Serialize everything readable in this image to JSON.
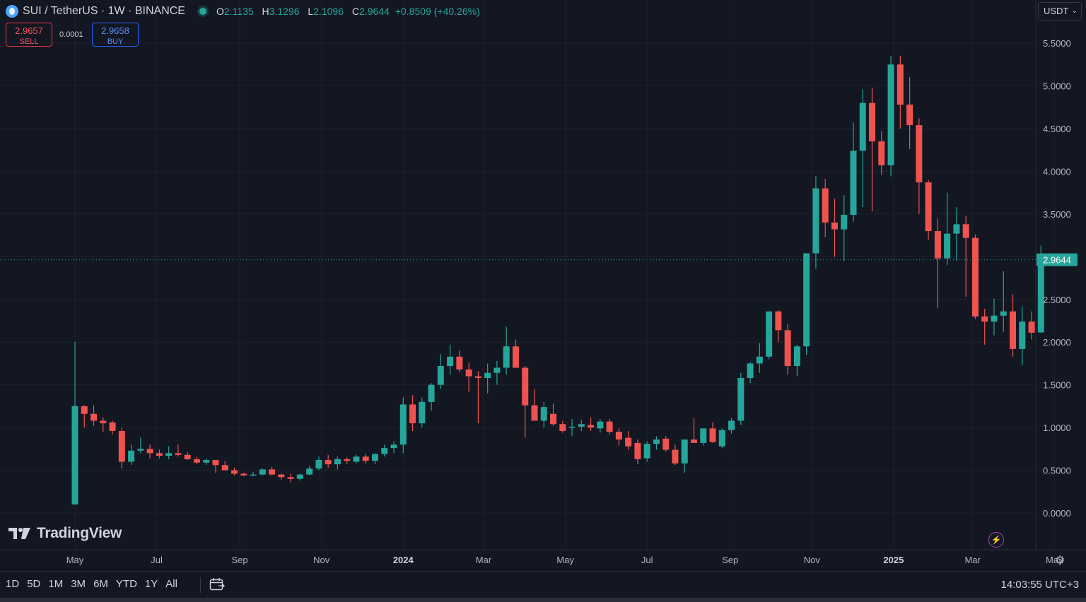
{
  "header": {
    "symbol": "SUI / TetherUS · 1W · BINANCE",
    "ohlc": [
      {
        "key": "O",
        "value": "2.1135"
      },
      {
        "key": "H",
        "value": "3.1296"
      },
      {
        "key": "L",
        "value": "2.1096"
      },
      {
        "key": "C",
        "value": "2.9644"
      }
    ],
    "change": "+0.8509 (+40.26%)"
  },
  "trade": {
    "sell_price": "2.9657",
    "sell_label": "SELL",
    "spread": "0.0001",
    "buy_price": "2.9658",
    "buy_label": "BUY"
  },
  "currency_selector": "USDT",
  "watermark": "TradingView",
  "ranges": [
    "1D",
    "5D",
    "1M",
    "3M",
    "6M",
    "YTD",
    "1Y",
    "All"
  ],
  "clock": "14:03:55 UTC+3",
  "colors": {
    "background": "#131722",
    "up": "#26a69a",
    "down": "#ef5350",
    "grid": "#1e222d",
    "last_price": "#26a69a"
  },
  "chart_data": {
    "type": "candlestick",
    "title": "SUI / TetherUS · 1W · BINANCE",
    "y_ticks": [
      "5.5000",
      "5.0000",
      "4.5000",
      "4.0000",
      "3.5000",
      "3.0000",
      "2.5000",
      "2.0000",
      "1.5000",
      "1.0000",
      "0.5000",
      "0.0000"
    ],
    "y_tick_values": [
      5.5,
      5,
      4.5,
      4,
      3.5,
      3,
      2.5,
      2,
      1.5,
      1,
      0.5,
      0
    ],
    "ylim": [
      -0.2,
      5.97
    ],
    "x_ticks": [
      {
        "label": "May",
        "date": "2023-05-01",
        "bold": false
      },
      {
        "label": "Jul",
        "date": "2023-07-01",
        "bold": false
      },
      {
        "label": "Sep",
        "date": "2023-09-01",
        "bold": false
      },
      {
        "label": "Nov",
        "date": "2023-11-01",
        "bold": false
      },
      {
        "label": "2024",
        "date": "2024-01-01",
        "bold": true
      },
      {
        "label": "Mar",
        "date": "2024-03-01",
        "bold": false
      },
      {
        "label": "May",
        "date": "2024-05-01",
        "bold": false
      },
      {
        "label": "Jul",
        "date": "2024-07-01",
        "bold": false
      },
      {
        "label": "Sep",
        "date": "2024-09-01",
        "bold": false
      },
      {
        "label": "Nov",
        "date": "2024-11-01",
        "bold": false
      },
      {
        "label": "2025",
        "date": "2025-01-01",
        "bold": true
      },
      {
        "label": "Mar",
        "date": "2025-03-01",
        "bold": false
      },
      {
        "label": "May",
        "date": "2025-05-01",
        "bold": false
      }
    ],
    "last_price": 2.9644,
    "last_price_label": "2.9644",
    "grid": true,
    "candles": [
      {
        "date": "2023-05-01",
        "o": 0.1,
        "h": 2.0,
        "l": 0.1,
        "c": 1.25
      },
      {
        "date": "2023-05-08",
        "o": 1.25,
        "h": 1.26,
        "l": 1.0,
        "c": 1.16
      },
      {
        "date": "2023-05-15",
        "o": 1.16,
        "h": 1.26,
        "l": 1.02,
        "c": 1.08
      },
      {
        "date": "2023-05-22",
        "o": 1.08,
        "h": 1.12,
        "l": 0.95,
        "c": 1.05
      },
      {
        "date": "2023-05-29",
        "o": 1.06,
        "h": 1.08,
        "l": 0.92,
        "c": 0.96
      },
      {
        "date": "2023-06-05",
        "o": 0.96,
        "h": 1.0,
        "l": 0.52,
        "c": 0.6
      },
      {
        "date": "2023-06-12",
        "o": 0.6,
        "h": 0.8,
        "l": 0.56,
        "c": 0.73
      },
      {
        "date": "2023-06-19",
        "o": 0.73,
        "h": 0.88,
        "l": 0.7,
        "c": 0.75
      },
      {
        "date": "2023-06-26",
        "o": 0.75,
        "h": 0.8,
        "l": 0.64,
        "c": 0.7
      },
      {
        "date": "2023-07-03",
        "o": 0.7,
        "h": 0.74,
        "l": 0.64,
        "c": 0.67
      },
      {
        "date": "2023-07-10",
        "o": 0.67,
        "h": 0.78,
        "l": 0.63,
        "c": 0.7
      },
      {
        "date": "2023-07-17",
        "o": 0.7,
        "h": 0.8,
        "l": 0.66,
        "c": 0.68
      },
      {
        "date": "2023-07-24",
        "o": 0.68,
        "h": 0.71,
        "l": 0.62,
        "c": 0.63
      },
      {
        "date": "2023-07-31",
        "o": 0.63,
        "h": 0.66,
        "l": 0.57,
        "c": 0.59
      },
      {
        "date": "2023-08-07",
        "o": 0.59,
        "h": 0.64,
        "l": 0.56,
        "c": 0.62
      },
      {
        "date": "2023-08-14",
        "o": 0.62,
        "h": 0.62,
        "l": 0.47,
        "c": 0.56
      },
      {
        "date": "2023-08-21",
        "o": 0.56,
        "h": 0.61,
        "l": 0.51,
        "c": 0.5
      },
      {
        "date": "2023-08-28",
        "o": 0.5,
        "h": 0.53,
        "l": 0.44,
        "c": 0.46
      },
      {
        "date": "2023-09-04",
        "o": 0.46,
        "h": 0.47,
        "l": 0.43,
        "c": 0.44
      },
      {
        "date": "2023-09-11",
        "o": 0.44,
        "h": 0.48,
        "l": 0.43,
        "c": 0.45
      },
      {
        "date": "2023-09-18",
        "o": 0.45,
        "h": 0.52,
        "l": 0.44,
        "c": 0.51
      },
      {
        "date": "2023-09-25",
        "o": 0.51,
        "h": 0.54,
        "l": 0.44,
        "c": 0.45
      },
      {
        "date": "2023-10-02",
        "o": 0.45,
        "h": 0.46,
        "l": 0.39,
        "c": 0.42
      },
      {
        "date": "2023-10-09",
        "o": 0.42,
        "h": 0.46,
        "l": 0.36,
        "c": 0.4
      },
      {
        "date": "2023-10-16",
        "o": 0.4,
        "h": 0.46,
        "l": 0.38,
        "c": 0.45
      },
      {
        "date": "2023-10-23",
        "o": 0.45,
        "h": 0.55,
        "l": 0.44,
        "c": 0.52
      },
      {
        "date": "2023-10-30",
        "o": 0.52,
        "h": 0.66,
        "l": 0.5,
        "c": 0.62
      },
      {
        "date": "2023-11-06",
        "o": 0.62,
        "h": 0.68,
        "l": 0.53,
        "c": 0.57
      },
      {
        "date": "2023-11-13",
        "o": 0.57,
        "h": 0.66,
        "l": 0.51,
        "c": 0.63
      },
      {
        "date": "2023-11-20",
        "o": 0.63,
        "h": 0.65,
        "l": 0.57,
        "c": 0.61
      },
      {
        "date": "2023-11-27",
        "o": 0.6,
        "h": 0.68,
        "l": 0.58,
        "c": 0.66
      },
      {
        "date": "2023-12-04",
        "o": 0.66,
        "h": 0.69,
        "l": 0.58,
        "c": 0.61
      },
      {
        "date": "2023-12-11",
        "o": 0.61,
        "h": 0.7,
        "l": 0.57,
        "c": 0.69
      },
      {
        "date": "2023-12-18",
        "o": 0.69,
        "h": 0.8,
        "l": 0.66,
        "c": 0.76
      },
      {
        "date": "2023-12-25",
        "o": 0.76,
        "h": 0.84,
        "l": 0.7,
        "c": 0.8
      },
      {
        "date": "2024-01-01",
        "o": 0.8,
        "h": 1.35,
        "l": 0.7,
        "c": 1.27
      },
      {
        "date": "2024-01-08",
        "o": 1.27,
        "h": 1.38,
        "l": 0.96,
        "c": 1.05
      },
      {
        "date": "2024-01-15",
        "o": 1.05,
        "h": 1.35,
        "l": 1.0,
        "c": 1.3
      },
      {
        "date": "2024-01-22",
        "o": 1.3,
        "h": 1.52,
        "l": 1.2,
        "c": 1.5
      },
      {
        "date": "2024-01-29",
        "o": 1.5,
        "h": 1.86,
        "l": 1.45,
        "c": 1.72
      },
      {
        "date": "2024-02-05",
        "o": 1.72,
        "h": 1.97,
        "l": 1.62,
        "c": 1.83
      },
      {
        "date": "2024-02-12",
        "o": 1.83,
        "h": 1.9,
        "l": 1.65,
        "c": 1.68
      },
      {
        "date": "2024-02-19",
        "o": 1.68,
        "h": 1.76,
        "l": 1.42,
        "c": 1.6
      },
      {
        "date": "2024-02-26",
        "o": 1.6,
        "h": 1.66,
        "l": 1.05,
        "c": 1.58
      },
      {
        "date": "2024-03-04",
        "o": 1.58,
        "h": 1.75,
        "l": 1.4,
        "c": 1.64
      },
      {
        "date": "2024-03-11",
        "o": 1.64,
        "h": 1.78,
        "l": 1.5,
        "c": 1.7
      },
      {
        "date": "2024-03-18",
        "o": 1.7,
        "h": 2.18,
        "l": 1.62,
        "c": 1.95
      },
      {
        "date": "2024-03-25",
        "o": 1.95,
        "h": 2.03,
        "l": 1.7,
        "c": 1.7
      },
      {
        "date": "2024-04-01",
        "o": 1.7,
        "h": 1.72,
        "l": 0.88,
        "c": 1.26
      },
      {
        "date": "2024-04-08",
        "o": 1.26,
        "h": 1.45,
        "l": 1.08,
        "c": 1.08
      },
      {
        "date": "2024-04-15",
        "o": 1.08,
        "h": 1.3,
        "l": 1.0,
        "c": 1.24
      },
      {
        "date": "2024-04-22",
        "o": 1.16,
        "h": 1.28,
        "l": 1.02,
        "c": 1.04
      },
      {
        "date": "2024-04-29",
        "o": 1.04,
        "h": 1.08,
        "l": 0.94,
        "c": 0.96
      },
      {
        "date": "2024-05-06",
        "o": 1.0,
        "h": 1.1,
        "l": 0.9,
        "c": 1.01
      },
      {
        "date": "2024-05-13",
        "o": 1.01,
        "h": 1.09,
        "l": 0.96,
        "c": 1.04
      },
      {
        "date": "2024-05-20",
        "o": 1.03,
        "h": 1.12,
        "l": 0.96,
        "c": 1.0
      },
      {
        "date": "2024-05-27",
        "o": 0.99,
        "h": 1.1,
        "l": 0.94,
        "c": 1.07
      },
      {
        "date": "2024-06-03",
        "o": 1.07,
        "h": 1.1,
        "l": 0.92,
        "c": 0.95
      },
      {
        "date": "2024-06-10",
        "o": 0.95,
        "h": 0.99,
        "l": 0.79,
        "c": 0.86
      },
      {
        "date": "2024-06-17",
        "o": 0.88,
        "h": 0.96,
        "l": 0.74,
        "c": 0.78
      },
      {
        "date": "2024-06-24",
        "o": 0.82,
        "h": 0.86,
        "l": 0.57,
        "c": 0.63
      },
      {
        "date": "2024-07-01",
        "o": 0.64,
        "h": 0.84,
        "l": 0.6,
        "c": 0.81
      },
      {
        "date": "2024-07-08",
        "o": 0.81,
        "h": 0.9,
        "l": 0.74,
        "c": 0.86
      },
      {
        "date": "2024-07-15",
        "o": 0.87,
        "h": 0.9,
        "l": 0.72,
        "c": 0.74
      },
      {
        "date": "2024-07-22",
        "o": 0.74,
        "h": 0.8,
        "l": 0.56,
        "c": 0.58
      },
      {
        "date": "2024-07-29",
        "o": 0.58,
        "h": 0.86,
        "l": 0.47,
        "c": 0.86
      },
      {
        "date": "2024-08-05",
        "o": 0.86,
        "h": 1.11,
        "l": 0.82,
        "c": 0.82
      },
      {
        "date": "2024-08-12",
        "o": 0.82,
        "h": 0.99,
        "l": 0.79,
        "c": 0.99
      },
      {
        "date": "2024-08-19",
        "o": 0.99,
        "h": 1.06,
        "l": 0.82,
        "c": 0.83
      },
      {
        "date": "2024-08-26",
        "o": 0.78,
        "h": 0.99,
        "l": 0.76,
        "c": 0.97
      },
      {
        "date": "2024-09-02",
        "o": 0.97,
        "h": 1.11,
        "l": 0.93,
        "c": 1.08
      },
      {
        "date": "2024-09-09",
        "o": 1.08,
        "h": 1.64,
        "l": 1.03,
        "c": 1.58
      },
      {
        "date": "2024-09-16",
        "o": 1.58,
        "h": 1.77,
        "l": 1.52,
        "c": 1.75
      },
      {
        "date": "2024-09-23",
        "o": 1.75,
        "h": 1.99,
        "l": 1.64,
        "c": 1.83
      },
      {
        "date": "2024-09-30",
        "o": 1.83,
        "h": 2.36,
        "l": 1.8,
        "c": 2.36
      },
      {
        "date": "2024-10-07",
        "o": 2.36,
        "h": 2.37,
        "l": 2.0,
        "c": 2.14
      },
      {
        "date": "2024-10-14",
        "o": 2.14,
        "h": 2.21,
        "l": 1.62,
        "c": 1.72
      },
      {
        "date": "2024-10-21",
        "o": 1.72,
        "h": 1.97,
        "l": 1.6,
        "c": 1.95
      },
      {
        "date": "2024-10-28",
        "o": 1.95,
        "h": 3.04,
        "l": 1.85,
        "c": 3.04
      },
      {
        "date": "2024-11-04",
        "o": 3.04,
        "h": 3.94,
        "l": 2.86,
        "c": 3.8
      },
      {
        "date": "2024-11-11",
        "o": 3.8,
        "h": 3.91,
        "l": 3.23,
        "c": 3.4
      },
      {
        "date": "2024-11-18",
        "o": 3.4,
        "h": 3.68,
        "l": 3.0,
        "c": 3.32
      },
      {
        "date": "2024-11-25",
        "o": 3.32,
        "h": 3.72,
        "l": 2.95,
        "c": 3.49
      },
      {
        "date": "2024-12-02",
        "o": 3.49,
        "h": 4.57,
        "l": 3.41,
        "c": 4.24
      },
      {
        "date": "2024-12-09",
        "o": 4.24,
        "h": 4.96,
        "l": 3.58,
        "c": 4.8
      },
      {
        "date": "2024-12-16",
        "o": 4.8,
        "h": 4.98,
        "l": 3.53,
        "c": 4.35
      },
      {
        "date": "2024-12-23",
        "o": 4.35,
        "h": 4.47,
        "l": 3.96,
        "c": 4.07
      },
      {
        "date": "2024-12-30",
        "o": 4.07,
        "h": 5.35,
        "l": 3.94,
        "c": 5.25
      },
      {
        "date": "2025-01-06",
        "o": 5.25,
        "h": 5.35,
        "l": 4.5,
        "c": 4.78
      },
      {
        "date": "2025-01-13",
        "o": 4.78,
        "h": 5.1,
        "l": 4.26,
        "c": 4.54
      },
      {
        "date": "2025-01-20",
        "o": 4.54,
        "h": 4.62,
        "l": 3.5,
        "c": 3.87
      },
      {
        "date": "2025-01-27",
        "o": 3.87,
        "h": 3.9,
        "l": 3.2,
        "c": 3.3
      },
      {
        "date": "2025-02-03",
        "o": 3.3,
        "h": 3.45,
        "l": 2.4,
        "c": 2.98
      },
      {
        "date": "2025-02-10",
        "o": 2.98,
        "h": 3.75,
        "l": 2.9,
        "c": 3.27
      },
      {
        "date": "2025-02-17",
        "o": 3.27,
        "h": 3.58,
        "l": 2.95,
        "c": 3.38
      },
      {
        "date": "2025-02-24",
        "o": 3.38,
        "h": 3.48,
        "l": 2.53,
        "c": 3.22
      },
      {
        "date": "2025-03-03",
        "o": 3.22,
        "h": 3.26,
        "l": 2.27,
        "c": 2.3
      },
      {
        "date": "2025-03-10",
        "o": 2.3,
        "h": 2.39,
        "l": 1.97,
        "c": 2.24
      },
      {
        "date": "2025-03-17",
        "o": 2.24,
        "h": 2.51,
        "l": 2.08,
        "c": 2.31
      },
      {
        "date": "2025-03-24",
        "o": 2.31,
        "h": 2.83,
        "l": 2.12,
        "c": 2.36
      },
      {
        "date": "2025-03-31",
        "o": 2.36,
        "h": 2.56,
        "l": 1.83,
        "c": 1.92
      },
      {
        "date": "2025-04-07",
        "o": 1.92,
        "h": 2.42,
        "l": 1.73,
        "c": 2.24
      },
      {
        "date": "2025-04-14",
        "o": 2.24,
        "h": 2.36,
        "l": 2.03,
        "c": 2.11
      },
      {
        "date": "2025-04-21",
        "o": 2.1135,
        "h": 3.1296,
        "l": 2.1096,
        "c": 2.9644
      }
    ]
  }
}
